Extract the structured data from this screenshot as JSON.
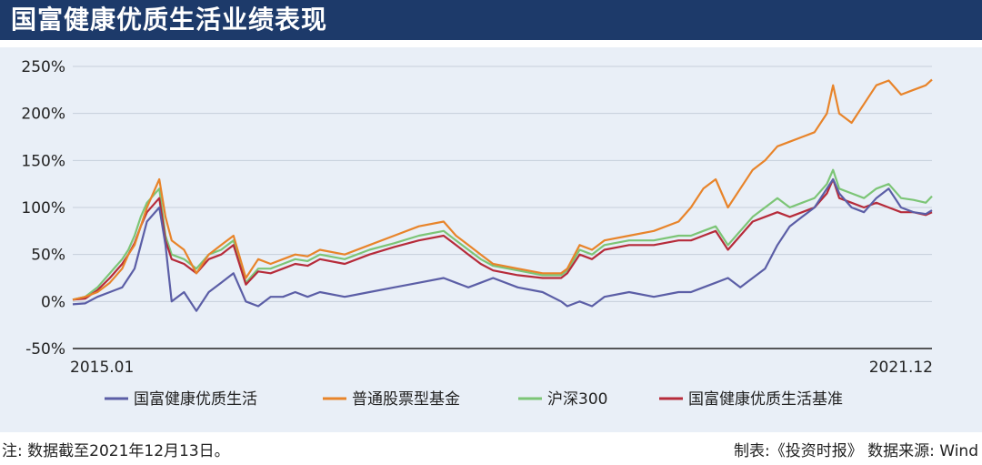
{
  "title": "国富健康优质生活业绩表现",
  "footer": {
    "note": "注: 数据截至2021年12月13日。",
    "source": "制表:《投资时报》  数据来源: Wind"
  },
  "colors": {
    "header": "#1d3a6a",
    "panel": "#e9eff7",
    "fund": "#5b5ea6",
    "equity_funds": "#e8842a",
    "csi300": "#7cc576",
    "benchmark": "#b62b3a"
  },
  "chart_data": {
    "type": "line",
    "xlabel": "",
    "ylabel": "",
    "x_tick_labels": [
      "2015.01",
      "2021.12"
    ],
    "x_range": [
      2015.0,
      2021.95
    ],
    "ylim": [
      -50,
      250
    ],
    "y_ticks": [
      -50,
      0,
      50,
      100,
      150,
      200,
      250
    ],
    "y_tick_labels": [
      "-50%",
      "0%",
      "50%",
      "100%",
      "150%",
      "200%",
      "250%"
    ],
    "grid": "horizontal",
    "legend": "bottom",
    "x": [
      2015.0,
      2015.1,
      2015.2,
      2015.3,
      2015.4,
      2015.45,
      2015.5,
      2015.55,
      2015.6,
      2015.7,
      2015.75,
      2015.8,
      2015.9,
      2016.0,
      2016.1,
      2016.2,
      2016.3,
      2016.4,
      2016.5,
      2016.6,
      2016.7,
      2016.8,
      2016.9,
      2017.0,
      2017.2,
      2017.4,
      2017.6,
      2017.8,
      2018.0,
      2018.1,
      2018.2,
      2018.3,
      2018.4,
      2018.6,
      2018.8,
      2018.95,
      2019.0,
      2019.1,
      2019.2,
      2019.3,
      2019.5,
      2019.7,
      2019.9,
      2020.0,
      2020.1,
      2020.2,
      2020.3,
      2020.4,
      2020.5,
      2020.6,
      2020.7,
      2020.8,
      2020.9,
      2021.0,
      2021.1,
      2021.15,
      2021.2,
      2021.3,
      2021.4,
      2021.5,
      2021.6,
      2021.7,
      2021.8,
      2021.9,
      2021.95
    ],
    "series": [
      {
        "name": "国富健康优质生活",
        "color": "#5b5ea6",
        "values": [
          -3,
          -2,
          5,
          10,
          15,
          25,
          35,
          60,
          85,
          100,
          60,
          0,
          10,
          -10,
          10,
          20,
          30,
          0,
          -5,
          5,
          5,
          10,
          5,
          10,
          5,
          10,
          15,
          20,
          25,
          20,
          15,
          20,
          25,
          15,
          10,
          0,
          -5,
          0,
          -5,
          5,
          10,
          5,
          10,
          10,
          15,
          20,
          25,
          15,
          25,
          35,
          60,
          80,
          90,
          100,
          120,
          130,
          115,
          100,
          95,
          110,
          120,
          100,
          95,
          93,
          97
        ]
      },
      {
        "name": "普通股票型基金",
        "color": "#e8842a",
        "values": [
          2,
          5,
          10,
          20,
          35,
          50,
          60,
          80,
          100,
          130,
          90,
          65,
          55,
          30,
          50,
          60,
          70,
          25,
          45,
          40,
          45,
          50,
          48,
          55,
          50,
          60,
          70,
          80,
          85,
          70,
          60,
          50,
          40,
          35,
          30,
          30,
          35,
          60,
          55,
          65,
          70,
          75,
          85,
          100,
          120,
          130,
          100,
          120,
          140,
          150,
          165,
          170,
          175,
          180,
          200,
          230,
          200,
          190,
          210,
          230,
          235,
          220,
          225,
          230,
          236
        ]
      },
      {
        "name": "沪深300",
        "color": "#7cc576",
        "values": [
          2,
          5,
          15,
          30,
          45,
          55,
          70,
          90,
          105,
          120,
          70,
          50,
          45,
          35,
          50,
          55,
          65,
          20,
          35,
          35,
          40,
          45,
          43,
          50,
          45,
          55,
          62,
          70,
          75,
          65,
          55,
          45,
          38,
          33,
          28,
          28,
          33,
          55,
          50,
          60,
          65,
          65,
          70,
          70,
          75,
          80,
          60,
          75,
          90,
          100,
          110,
          100,
          105,
          110,
          125,
          140,
          120,
          115,
          110,
          120,
          125,
          110,
          108,
          105,
          112
        ]
      },
      {
        "name": "国富健康优质生活基准",
        "color": "#b62b3a",
        "values": [
          2,
          3,
          12,
          25,
          40,
          50,
          62,
          80,
          95,
          110,
          65,
          45,
          40,
          30,
          45,
          50,
          60,
          18,
          32,
          30,
          35,
          40,
          38,
          45,
          40,
          50,
          58,
          65,
          70,
          60,
          50,
          40,
          33,
          28,
          25,
          25,
          30,
          50,
          45,
          55,
          60,
          60,
          65,
          65,
          70,
          75,
          55,
          70,
          85,
          90,
          95,
          90,
          95,
          100,
          115,
          130,
          110,
          105,
          100,
          105,
          100,
          95,
          95,
          92,
          95
        ]
      }
    ]
  }
}
